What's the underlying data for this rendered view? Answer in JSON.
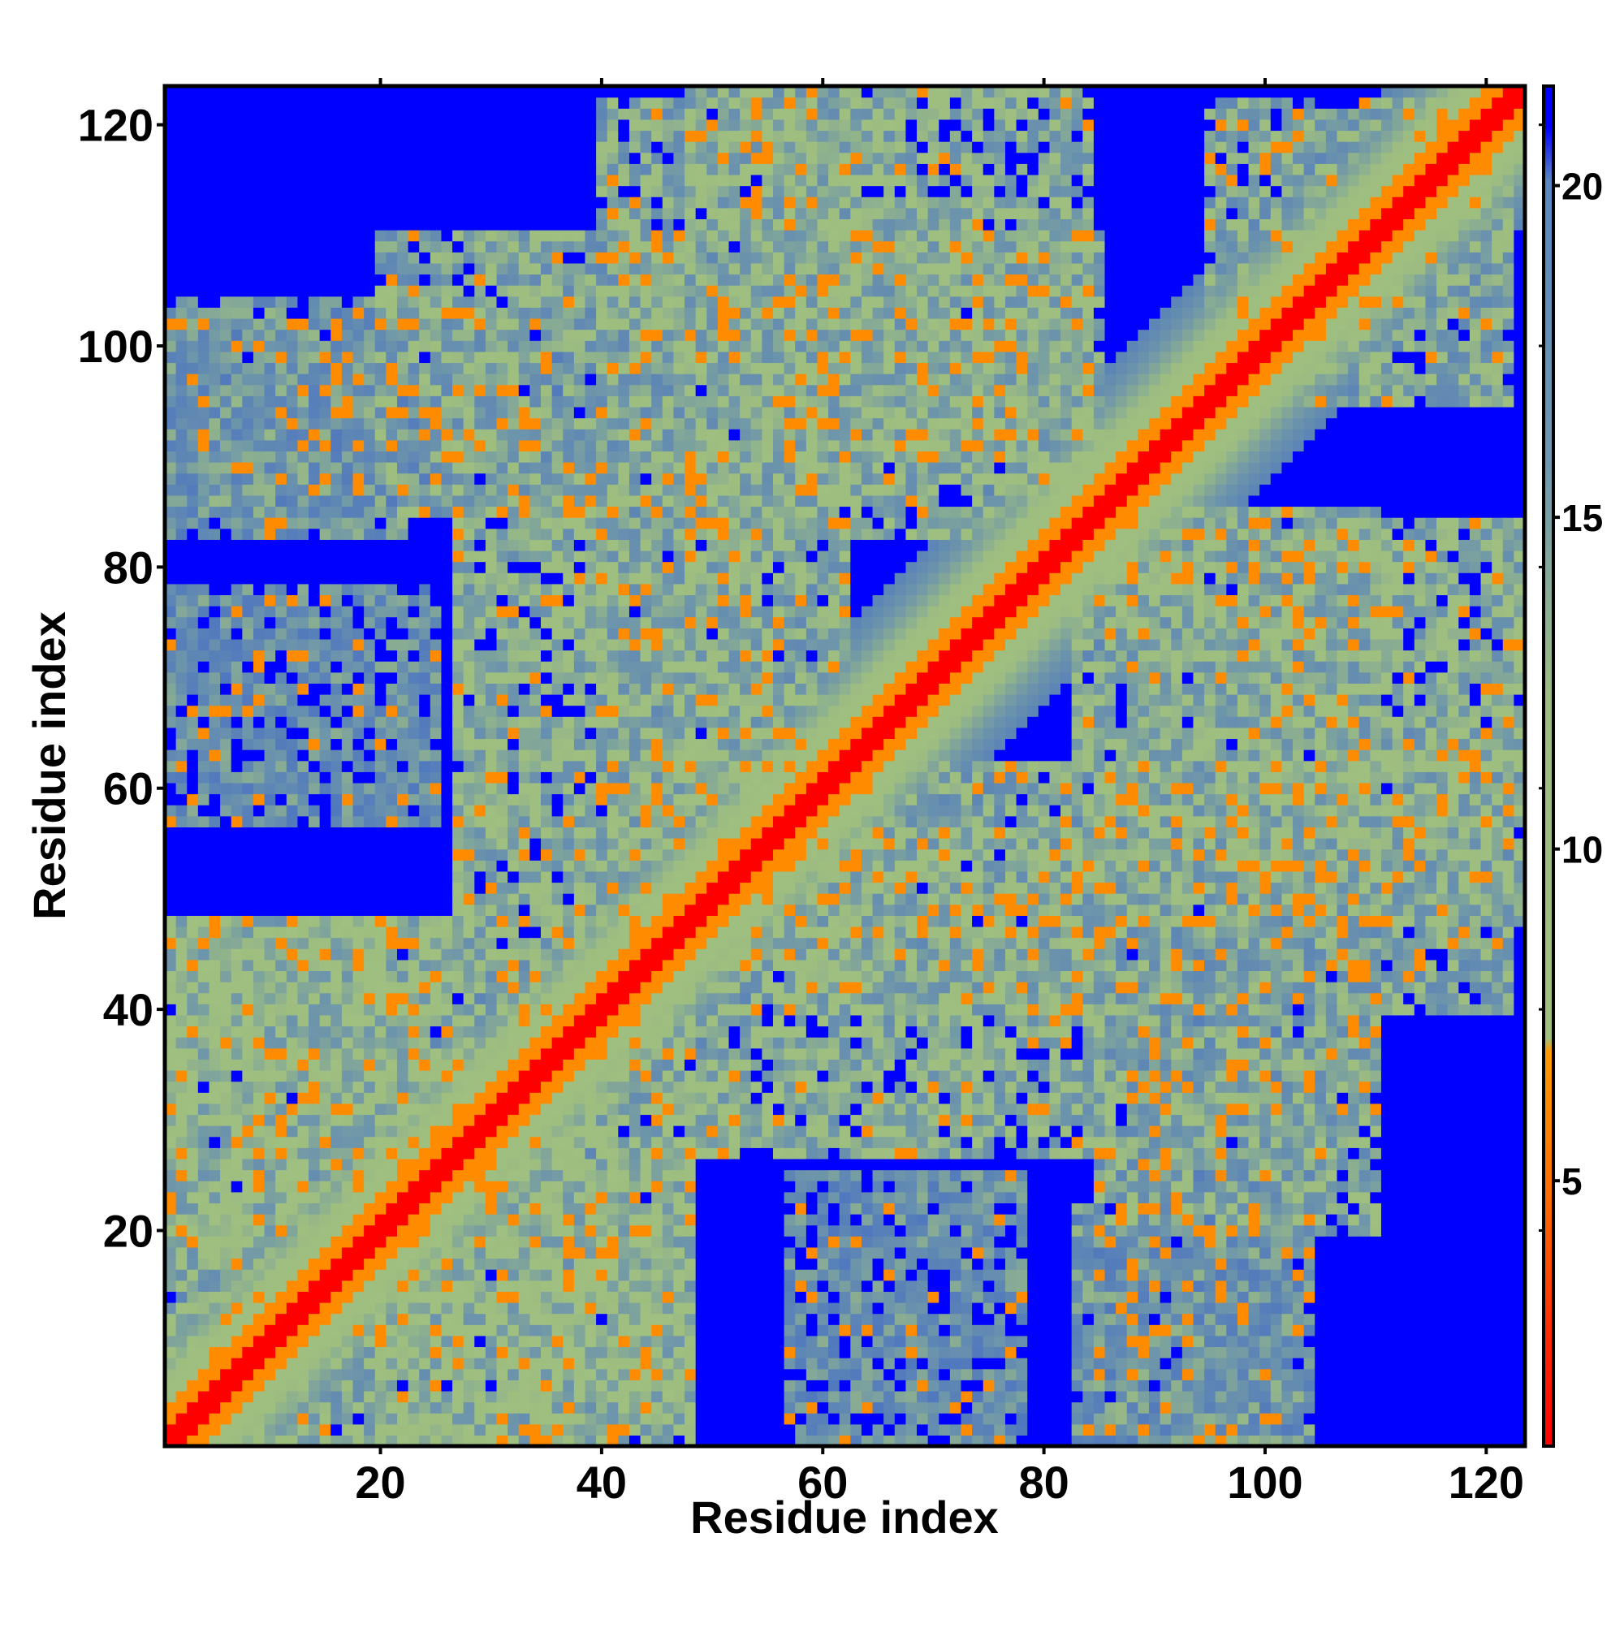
{
  "chart_data": {
    "type": "heatmap",
    "xlabel": "Residue index",
    "ylabel": "Residue index",
    "xlim": [
      1,
      123
    ],
    "ylim": [
      1,
      123
    ],
    "x_ticks": [
      20,
      40,
      60,
      80,
      100,
      120
    ],
    "y_ticks": [
      20,
      40,
      60,
      80,
      100,
      120
    ],
    "colorbar": {
      "range": [
        1,
        21.5
      ],
      "ticks": [
        5,
        10,
        15,
        20
      ],
      "colors": [
        "#ff0000",
        "#ff8c00",
        "#9fbf80",
        "#5f8fbf",
        "#0000ff"
      ]
    },
    "values_description_note": null,
    "structure": {
      "diagonal_band": {
        "from": [
          1,
          1
        ],
        "to": [
          123,
          123
        ]
      },
      "off_diagonal_blocks": [
        {
          "x": [
            1,
            45
          ],
          "y": [
            1,
            48
          ],
          "level": 11
        },
        {
          "x": [
            40,
            62
          ],
          "y": [
            55,
            108
          ],
          "level": 12
        },
        {
          "x": [
            1,
            42
          ],
          "y": [
            85,
            104
          ],
          "level": 14
        },
        {
          "x": [
            40,
            65
          ],
          "y": [
            108,
            122
          ],
          "level": 12
        },
        {
          "x": [
            55,
            85
          ],
          "y": [
            88,
            110
          ],
          "level": 11
        },
        {
          "x": [
            95,
            122
          ],
          "y": [
            98,
            122
          ],
          "level": 12
        },
        {
          "x": [
            48,
            85
          ],
          "y": [
            27,
            55
          ],
          "level": 11
        },
        {
          "x": [
            20,
            48
          ],
          "y": [
            1,
            28
          ],
          "level": 10
        },
        {
          "x": [
            83,
            123
          ],
          "y": [
            48,
            84
          ],
          "level": 11
        },
        {
          "x": [
            85,
            110
          ],
          "y": [
            20,
            48
          ],
          "level": 12
        },
        {
          "x": [
            57,
            78
          ],
          "y": [
            1,
            25
          ],
          "level": 15
        },
        {
          "x": [
            83,
            102
          ],
          "y": [
            1,
            22
          ],
          "level": 14
        }
      ]
    }
  }
}
